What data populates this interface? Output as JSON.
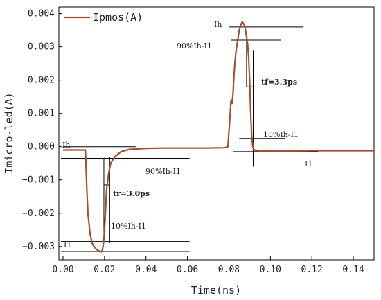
{
  "chart_data": {
    "type": "line",
    "xlabel": "Time(ns)",
    "ylabel": "Imicro-led(A)",
    "xlim": [
      -0.002,
      0.15
    ],
    "ylim": [
      -0.0034,
      0.0042
    ],
    "x_ticks": [
      0.0,
      0.02,
      0.04,
      0.06,
      0.08,
      0.1,
      0.12,
      0.14
    ],
    "x_tick_labels": [
      "0.00",
      "0.02",
      "0.04",
      "0.06",
      "0.08",
      "0.10",
      "0.12",
      "0.14"
    ],
    "y_ticks": [
      -0.003,
      -0.002,
      -0.001,
      0.0,
      0.001,
      0.002,
      0.003,
      0.004
    ],
    "y_tick_labels": [
      "−0.003",
      "−0.002",
      "−0.001",
      "0.000",
      "0.001",
      "0.002",
      "0.003",
      "0.004"
    ],
    "legend": {
      "position": "top-left",
      "entries": [
        "Ipmos(A)"
      ]
    },
    "series_color": "#a0522d",
    "series": [
      {
        "name": "Ipmos(A)",
        "x": [
          0.0,
          0.005,
          0.0108,
          0.011,
          0.0115,
          0.012,
          0.013,
          0.014,
          0.015,
          0.016,
          0.017,
          0.018,
          0.0185,
          0.019,
          0.0195,
          0.02,
          0.0205,
          0.021,
          0.022,
          0.023,
          0.025,
          0.028,
          0.032,
          0.04,
          0.05,
          0.06,
          0.07,
          0.078,
          0.0795,
          0.0805,
          0.081,
          0.0815,
          0.082,
          0.0825,
          0.083,
          0.0835,
          0.084,
          0.0845,
          0.085,
          0.0855,
          0.086,
          0.0865,
          0.087,
          0.0875,
          0.088,
          0.0885,
          0.089,
          0.0895,
          0.09,
          0.0905,
          0.091,
          0.0915,
          0.092,
          0.093,
          0.095,
          0.1,
          0.11,
          0.12,
          0.13,
          0.14,
          0.15
        ],
        "y": [
          -0.0001,
          -0.0001,
          -0.0001,
          -0.0004,
          -0.0013,
          -0.002,
          -0.0026,
          -0.0029,
          -0.003,
          -0.00308,
          -0.00312,
          -0.00315,
          -0.00316,
          -0.0031,
          -0.0029,
          -0.0025,
          -0.0019,
          -0.0013,
          -0.0008,
          -0.0005,
          -0.0003,
          -0.00015,
          -8e-05,
          -5e-05,
          -4e-05,
          -4e-05,
          -4e-05,
          -3e-05,
          0.0,
          0.0009,
          0.0014,
          0.0013,
          0.0016,
          0.0022,
          0.0026,
          0.0029,
          0.0031,
          0.0033,
          0.0035,
          0.0036,
          0.0037,
          0.00375,
          0.0037,
          0.00365,
          0.0035,
          0.0033,
          0.0031,
          0.0027,
          0.002,
          0.001,
          0.0003,
          0.0,
          -8e-05,
          -0.00012,
          -0.00013,
          -0.00013,
          -0.00013,
          -0.00012,
          -0.00012,
          -0.00012,
          -0.00012
        ]
      }
    ],
    "annotations": {
      "left_ih": "Ih",
      "left_90": "90%Ih-I1",
      "left_tr": "tr=3.0ps",
      "left_10": "10%Ih-I1",
      "left_il": "I1",
      "right_ih": "Ih",
      "right_90": "90%Ih-I1",
      "right_tf": "tf=3.3ps",
      "right_10": "10%Ih-I1",
      "right_il": "I1"
    },
    "ref_levels": {
      "left_ih": 0.0,
      "left_90": -0.00035,
      "left_10": -0.00285,
      "left_il": -0.00315,
      "right_ih": 0.0036,
      "right_90": 0.0032,
      "right_10": 0.00025,
      "right_il": -0.00015
    }
  }
}
